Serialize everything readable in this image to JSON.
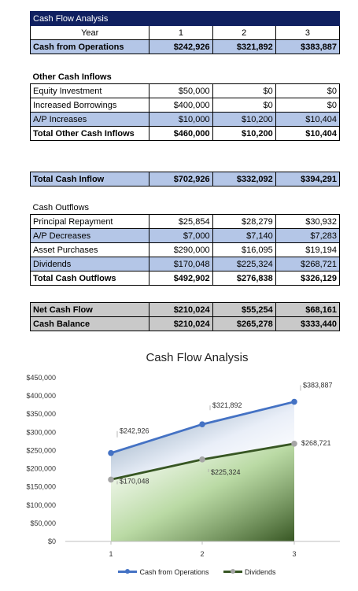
{
  "sheet": {
    "title": "Cash Flow Analysis",
    "year_label": "Year",
    "years": [
      "1",
      "2",
      "3"
    ],
    "ops": {
      "label": "Cash from Operations",
      "values": [
        "$242,926",
        "$321,892",
        "$383,887"
      ]
    },
    "other_header": "Other Cash Inflows",
    "other_rows": [
      {
        "label": "Equity Investment",
        "values": [
          "$50,000",
          "$0",
          "$0"
        ]
      },
      {
        "label": "Increased Borrowings",
        "values": [
          "$400,000",
          "$0",
          "$0"
        ]
      },
      {
        "label": "A/P Increases",
        "values": [
          "$10,000",
          "$10,200",
          "$10,404"
        ]
      }
    ],
    "other_total": {
      "label": "Total Other Cash Inflows",
      "values": [
        "$460,000",
        "$10,200",
        "$10,404"
      ]
    },
    "total_inflow": {
      "label": "Total Cash Inflow",
      "values": [
        "$702,926",
        "$332,092",
        "$394,291"
      ]
    },
    "outflow_header": "Cash Outflows",
    "outflow_rows": [
      {
        "label": "Principal Repayment",
        "values": [
          "$25,854",
          "$28,279",
          "$30,932"
        ]
      },
      {
        "label": "A/P Decreases",
        "values": [
          "$7,000",
          "$7,140",
          "$7,283"
        ]
      },
      {
        "label": "Asset Purchases",
        "values": [
          "$290,000",
          "$16,095",
          "$19,194"
        ]
      },
      {
        "label": "Dividends",
        "values": [
          "$170,048",
          "$225,324",
          "$268,721"
        ]
      }
    ],
    "outflow_total": {
      "label": "Total Cash Outflows",
      "values": [
        "$492,902",
        "$276,838",
        "$326,129"
      ]
    },
    "net": {
      "label": "Net Cash Flow",
      "values": [
        "$210,024",
        "$55,254",
        "$68,161"
      ]
    },
    "balance": {
      "label": "Cash Balance",
      "values": [
        "$210,024",
        "$265,278",
        "$333,440"
      ]
    }
  },
  "chart_data": {
    "type": "line",
    "title": "Cash Flow Analysis",
    "x": [
      "1",
      "2",
      "3"
    ],
    "ylim": [
      0,
      450000
    ],
    "yticks": [
      0,
      50000,
      100000,
      150000,
      200000,
      250000,
      300000,
      350000,
      400000,
      450000
    ],
    "ytick_labels": [
      "$0",
      "$50,000",
      "$100,000",
      "$150,000",
      "$200,000",
      "$250,000",
      "$300,000",
      "$350,000",
      "$400,000",
      "$450,000"
    ],
    "grid": false,
    "legend": "bottom",
    "series": [
      {
        "name": "Cash from Operations",
        "values": [
          242926,
          321892,
          383887
        ],
        "labels": [
          "$242,926",
          "$321,892",
          "$383,887"
        ],
        "color": "#4472c4",
        "fill": "blue-gradient"
      },
      {
        "name": "Dividends",
        "values": [
          170048,
          225324,
          268721
        ],
        "labels": [
          "$170,048",
          "$225,324",
          "$268,721"
        ],
        "color": "#375623",
        "marker_color": "#a5a5a5",
        "fill": "green-gradient"
      }
    ]
  }
}
